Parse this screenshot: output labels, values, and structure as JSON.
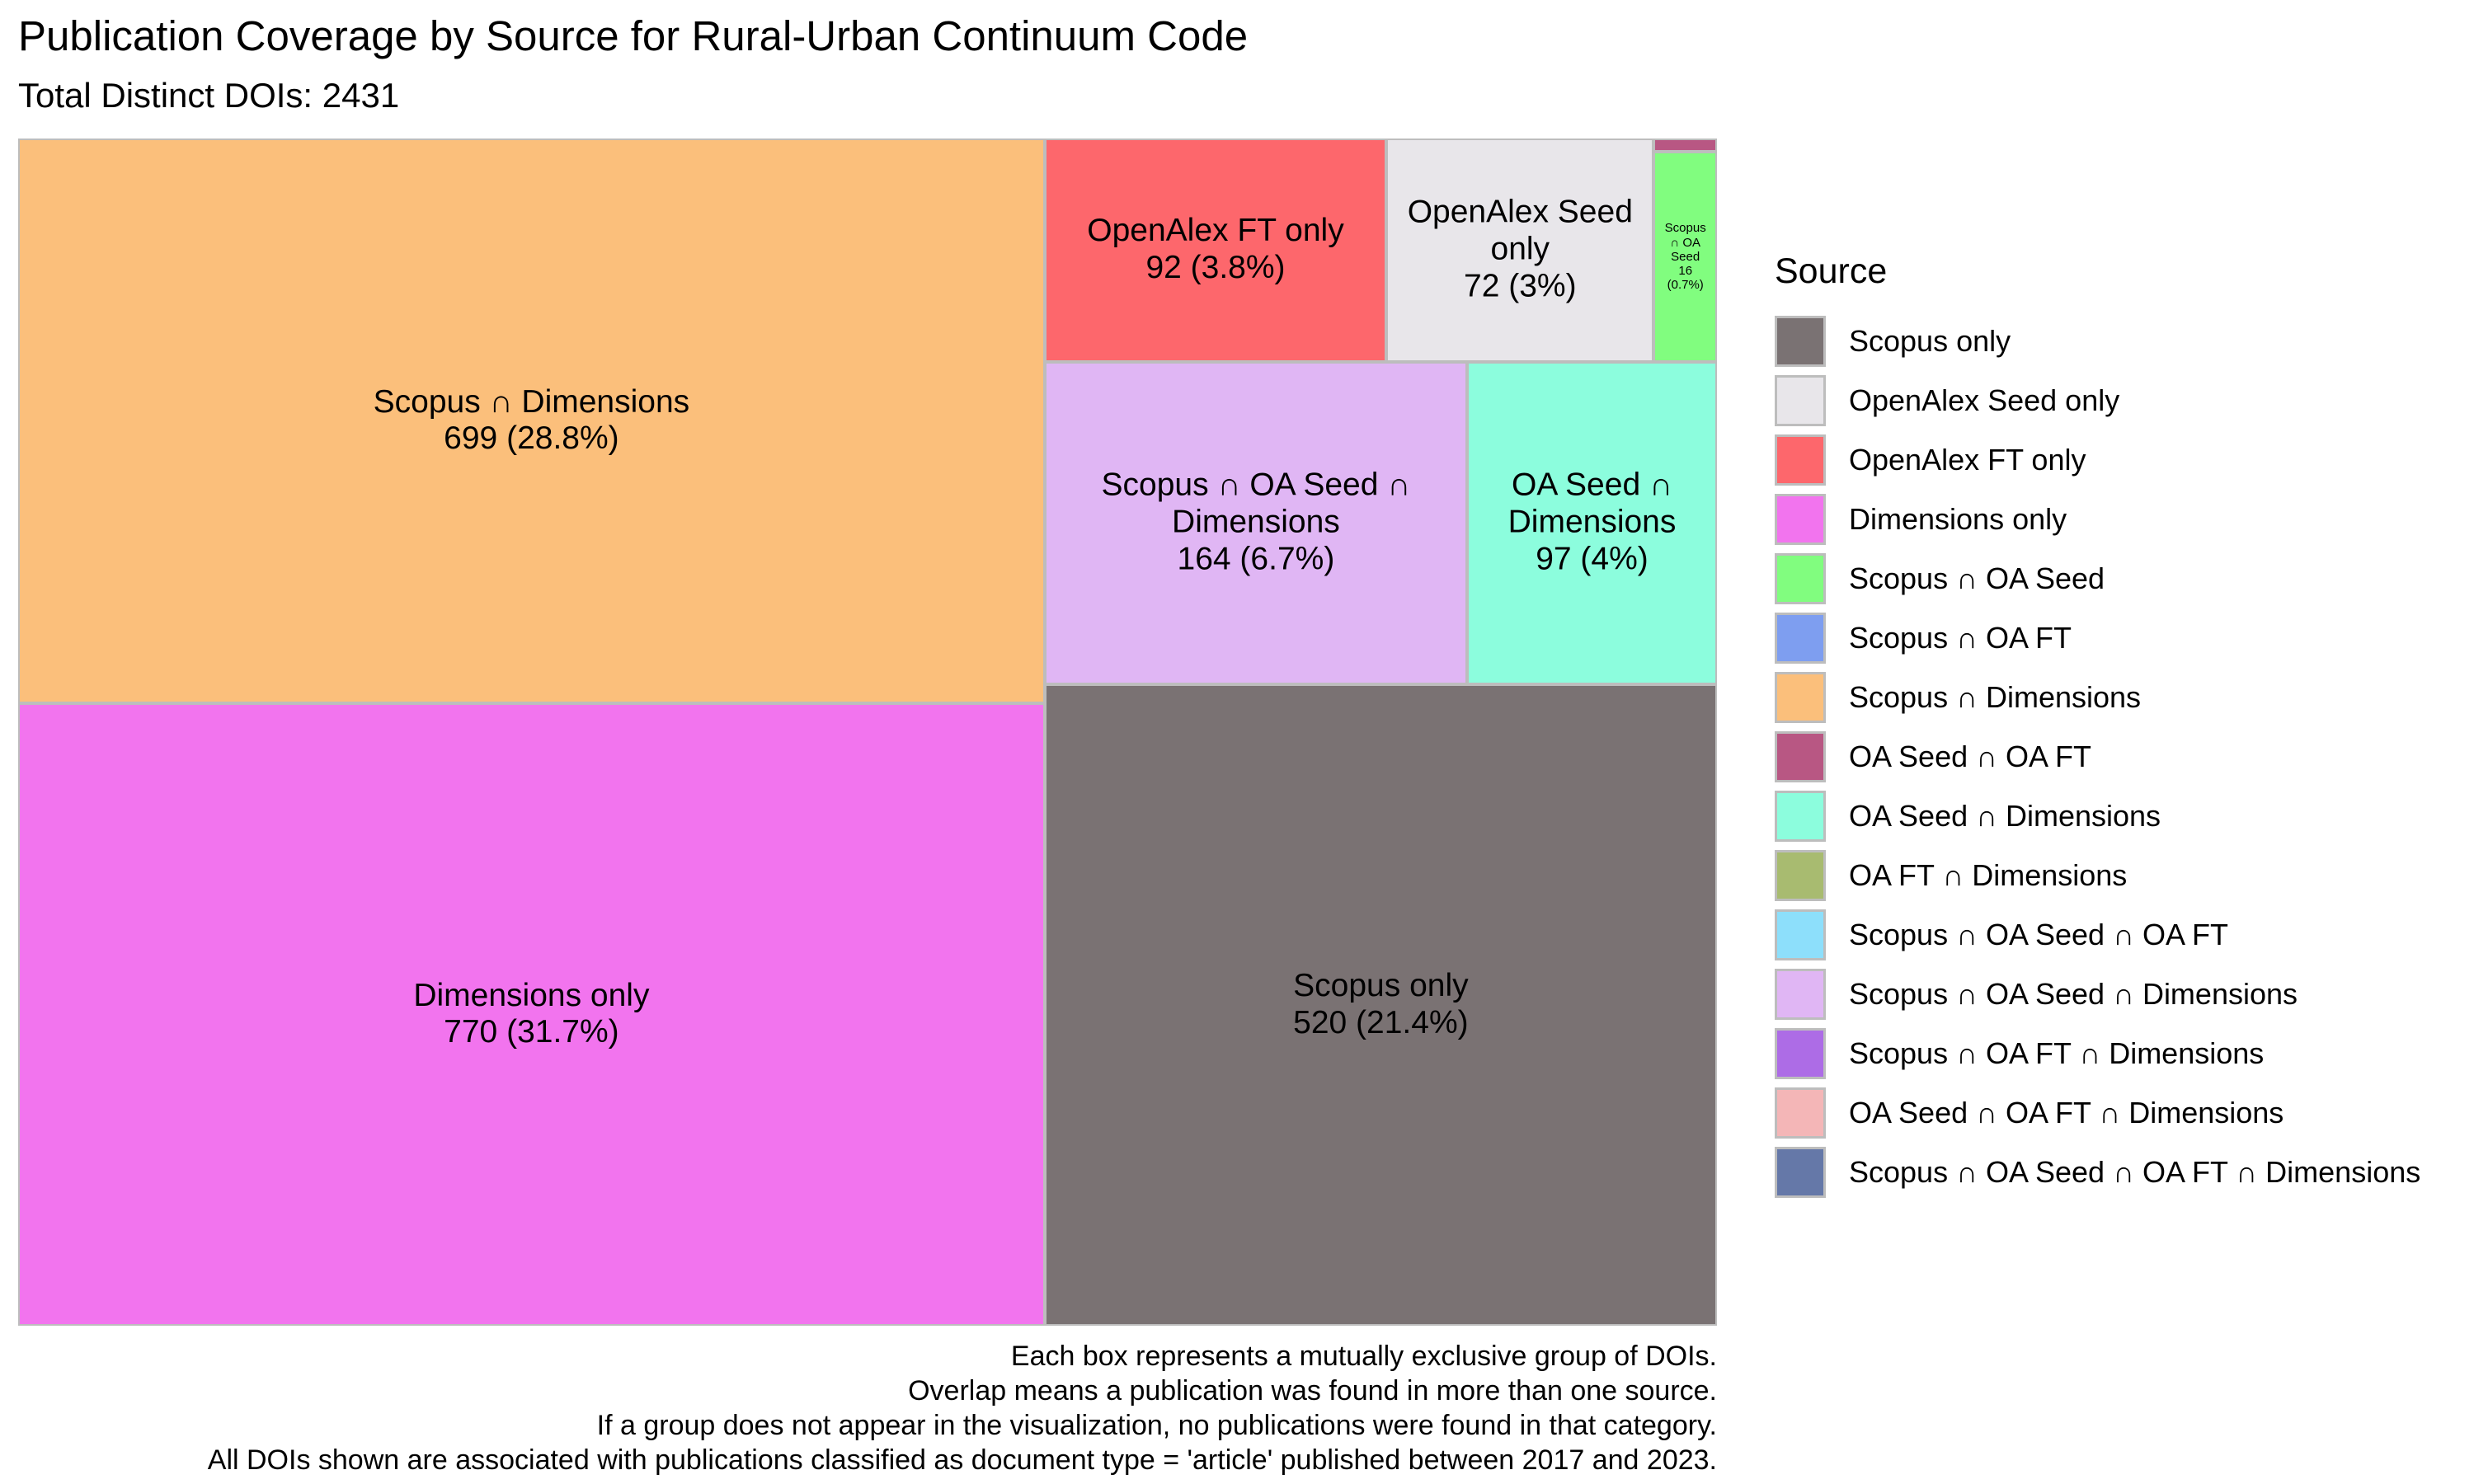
{
  "chart_data": {
    "type": "treemap",
    "title": "Publication Coverage by Source for Rural-Urban Continuum Code",
    "subtitle": "Total Distinct DOIs: 2431",
    "legend_title": "Source",
    "legend_position": "right",
    "legend": [
      {
        "name": "Scopus only",
        "color": "#7a7273"
      },
      {
        "name": "OpenAlex Seed only",
        "color": "#e8e6ea"
      },
      {
        "name": "OpenAlex FT only",
        "color": "#fd676c"
      },
      {
        "name": "Dimensions only",
        "color": "#f274ee"
      },
      {
        "name": "Scopus ∩ OA Seed",
        "color": "#81fd7f"
      },
      {
        "name": "Scopus ∩ OA FT",
        "color": "#7e9ef0"
      },
      {
        "name": "Scopus ∩ Dimensions",
        "color": "#fbbf7b"
      },
      {
        "name": "OA Seed ∩ OA FT",
        "color": "#b85783"
      },
      {
        "name": "OA Seed ∩ Dimensions",
        "color": "#8cfddd"
      },
      {
        "name": "OA FT ∩ Dimensions",
        "color": "#a8bb70"
      },
      {
        "name": "Scopus ∩ OA Seed ∩ OA FT",
        "color": "#8ddffb"
      },
      {
        "name": "Scopus ∩ OA Seed ∩ Dimensions",
        "color": "#e0b6f4"
      },
      {
        "name": "Scopus ∩ OA FT ∩ Dimensions",
        "color": "#ad6ce6"
      },
      {
        "name": "OA Seed ∩ OA FT ∩ Dimensions",
        "color": "#f4b6b7"
      },
      {
        "name": "Scopus ∩ OA Seed ∩ OA FT ∩ Dimensions",
        "color": "#6578a8"
      }
    ],
    "tiles": [
      {
        "name": "Dimensions only",
        "value": 770,
        "value_label": "770 (31.7%)",
        "color": "#f274ee"
      },
      {
        "name": "Scopus ∩ Dimensions",
        "value": 699,
        "value_label": "699 (28.8%)",
        "color": "#fbbf7b"
      },
      {
        "name": "Scopus only",
        "value": 520,
        "value_label": "520 (21.4%)",
        "color": "#7a7273"
      },
      {
        "name": "Scopus ∩ OA Seed ∩ Dimensions",
        "value": 164,
        "value_label": "164 (6.7%)",
        "color": "#e0b6f4"
      },
      {
        "name": "OA Seed ∩ Dimensions",
        "value": 97,
        "value_label": "97 (4%)",
        "color": "#8cfddd"
      },
      {
        "name": "OpenAlex FT only",
        "value": 92,
        "value_label": "92 (3.8%)",
        "color": "#fd676c"
      },
      {
        "name": "OpenAlex Seed only",
        "value": 72,
        "value_label": "72 (3%)",
        "color": "#e8e6ea"
      },
      {
        "name": "Scopus ∩ OA Seed",
        "value": 16,
        "value_label": "16 (0.7%)",
        "color": "#81fd7f"
      },
      {
        "name": "OA Seed ∩ OA FT",
        "value": 1,
        "value_label": "",
        "color": "#b85783"
      }
    ],
    "caption": [
      "Each box represents a mutually exclusive group of DOIs.",
      "Overlap means a publication was found in more than one source.",
      "If a group does not appear in the visualization, no publications were found in that category.",
      "All DOIs shown are associated with publications classified as document type = 'article' published between 2017 and 2023."
    ]
  }
}
